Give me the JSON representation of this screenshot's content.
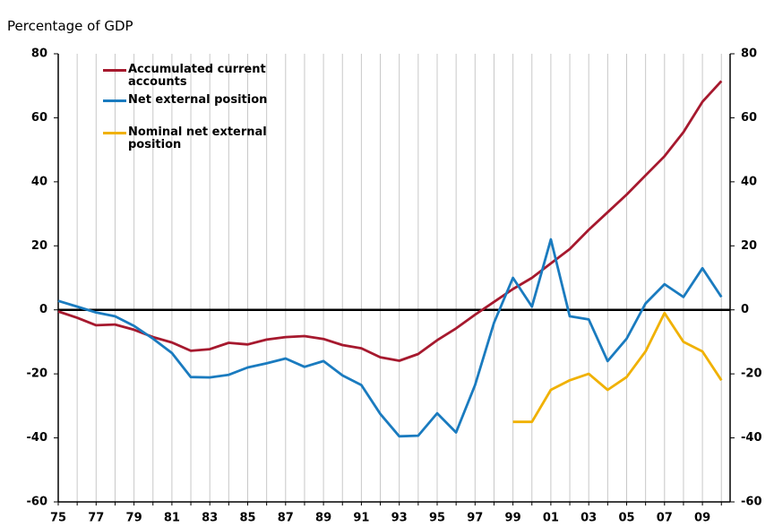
{
  "chart_data": {
    "type": "line",
    "ylabel": "Percentage of GDP",
    "categories": [
      "75",
      null,
      "77",
      null,
      "79",
      null,
      "81",
      null,
      "83",
      null,
      "85",
      null,
      "87",
      null,
      "89",
      null,
      "91",
      null,
      "93",
      null,
      "95",
      null,
      "97",
      null,
      "99",
      null,
      "01",
      null,
      "03",
      null,
      "05",
      null,
      "07",
      null,
      "09",
      null
    ],
    "series": [
      {
        "name": "Accumulated current accounts",
        "color": "#a6192e",
        "values": [
          -0.5,
          -2.5,
          -4.8,
          -4.6,
          -6.2,
          -8.5,
          -10.2,
          -12.8,
          -12.3,
          -10.3,
          -10.8,
          -9.3,
          -8.5,
          -8.2,
          -9.1,
          -11,
          -12,
          -14.8,
          -15.9,
          -13.8,
          -9.5,
          -5.8,
          -1.5,
          2.5,
          6.5,
          10,
          14.5,
          19,
          25,
          30.5,
          36,
          42,
          48,
          55.5,
          65,
          71.5
        ]
      },
      {
        "name": "Net external position",
        "color": "#1a7bbf",
        "values": [
          2.8,
          1,
          -0.8,
          -2,
          -5,
          -9,
          -13.5,
          -21,
          -21.1,
          -20.3,
          -18,
          -16.7,
          -15.2,
          -17.8,
          -16,
          -20.5,
          -23.5,
          -32.5,
          -39.5,
          -39.3,
          -32.3,
          -38.3,
          -23.5,
          -4,
          10,
          1,
          22,
          -2,
          -3,
          -16,
          -9,
          2,
          8,
          4,
          13,
          4
        ]
      },
      {
        "name": "Nominal net external position",
        "color": "#f0b100",
        "values": [
          null,
          null,
          null,
          null,
          null,
          null,
          null,
          null,
          null,
          null,
          null,
          null,
          null,
          null,
          null,
          null,
          null,
          null,
          null,
          null,
          null,
          null,
          null,
          null,
          -35,
          -35,
          -25,
          -22,
          -20,
          -25,
          -21,
          -13,
          -1,
          -10,
          -13,
          -22
        ]
      }
    ],
    "ylim": [
      -60,
      80
    ],
    "yticks": [
      -60,
      -40,
      -20,
      0,
      20,
      40,
      60,
      80
    ],
    "y2lim": [
      -60,
      80
    ],
    "y2ticks": [
      -60,
      -40,
      -20,
      0,
      20,
      40,
      60,
      80
    ],
    "grid": true,
    "legend": "upper left"
  }
}
